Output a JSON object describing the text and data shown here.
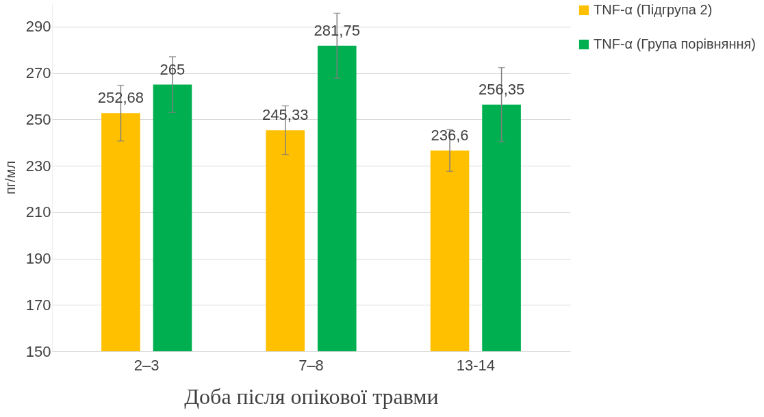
{
  "chart_data": {
    "type": "bar",
    "xlabel": "Доба після опікової травми",
    "ylabel": "пг/мл",
    "categories": [
      "2–3",
      "7–8",
      "13-14"
    ],
    "series": [
      {
        "name": "TNF-α (Підгрупа 2)",
        "color": "#ffc000",
        "values": [
          252.68,
          245.33,
          236.6
        ],
        "errors": [
          12,
          10.5,
          9
        ],
        "value_labels": [
          "252,68",
          "245,33",
          "236,6"
        ]
      },
      {
        "name": "TNF-α (Група порівняння)",
        "color": "#00b050",
        "values": [
          265,
          281.75,
          256.35
        ],
        "errors": [
          12,
          14,
          16
        ],
        "value_labels": [
          "265",
          "281,75",
          "256,35"
        ]
      }
    ],
    "ylim": [
      150,
      300
    ],
    "yticks": [
      150,
      170,
      190,
      210,
      230,
      250,
      270,
      290
    ],
    "grid": "y",
    "legend": "right"
  }
}
